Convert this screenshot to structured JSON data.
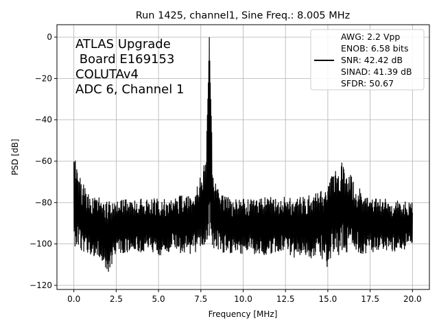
{
  "chart_data": {
    "type": "line",
    "title": "Run 1425, channel1, Sine Freq.: 8.005 MHz",
    "xlabel": "Frequency [MHz]",
    "ylabel": "PSD [dB]",
    "xlim": [
      -1.0,
      21.0
    ],
    "ylim": [
      -122,
      6
    ],
    "xticks": [
      0.0,
      2.5,
      5.0,
      7.5,
      10.0,
      12.5,
      15.0,
      17.5,
      20.0
    ],
    "xtick_labels": [
      "0.0",
      "2.5",
      "5.0",
      "7.5",
      "10.0",
      "12.5",
      "15.0",
      "17.5",
      "20.0"
    ],
    "yticks": [
      0,
      -20,
      -40,
      -60,
      -80,
      -100,
      -120
    ],
    "ytick_labels": [
      "0",
      "−20",
      "−40",
      "−60",
      "−80",
      "−100",
      "−120"
    ],
    "grid": true,
    "legend_position": "top-right",
    "annotation_lines": [
      "ATLAS Upgrade",
      " Board E169153",
      "COLUTAv4",
      "ADC 6, Channel 1"
    ],
    "legend_lines": [
      "AWG: 2.2 Vpp",
      "ENOB: 6.58 bits",
      "SNR: 42.42 dB",
      "SINAD: 41.39 dB",
      "SFDR: 50.67"
    ],
    "line_color": "#000000",
    "series": [
      {
        "x": [
          0.0,
          0.05,
          0.1,
          0.2,
          0.3,
          0.5,
          0.8,
          1.0,
          1.5,
          2.0,
          2.5,
          3.0,
          3.5,
          4.0,
          4.5,
          5.0,
          5.5,
          6.0,
          6.5,
          7.0,
          7.4,
          7.6,
          7.8,
          7.95,
          8.0,
          8.05,
          8.2,
          8.4,
          8.6,
          9.0,
          9.5,
          10.0,
          10.5,
          11.0,
          11.5,
          12.0,
          12.5,
          13.0,
          13.5,
          14.0,
          14.5,
          15.0,
          15.3,
          15.6,
          15.8,
          16.0,
          16.1,
          16.3,
          16.6,
          17.0,
          17.5,
          18.0,
          18.5,
          19.0,
          19.5,
          20.0
        ],
        "y_upper": [
          -60,
          -57,
          -60,
          -63,
          -66,
          -70,
          -74,
          -76,
          -77,
          -78,
          -79,
          -78,
          -79,
          -78,
          -78,
          -77,
          -78,
          -77,
          -76,
          -76,
          -70,
          -62,
          -61,
          -20,
          0,
          -20,
          -62,
          -70,
          -76,
          -77,
          -78,
          -78,
          -77,
          -78,
          -77,
          -78,
          -77,
          -78,
          -77,
          -76,
          -74,
          -70,
          -66,
          -62,
          -58,
          -62,
          -64,
          -66,
          -70,
          -74,
          -77,
          -78,
          -78,
          -79,
          -79,
          -80
        ],
        "y_lower": [
          -100,
          -101,
          -102,
          -103,
          -104,
          -105,
          -106,
          -106,
          -107,
          -116,
          -104,
          -105,
          -105,
          -104,
          -104,
          -106,
          -104,
          -104,
          -105,
          -105,
          -103,
          -102,
          -102,
          -99,
          -96,
          -100,
          -103,
          -103,
          -104,
          -105,
          -104,
          -105,
          -104,
          -107,
          -105,
          -105,
          -104,
          -107,
          -106,
          -107,
          -106,
          -112,
          -105,
          -106,
          -104,
          -104,
          -106,
          -103,
          -104,
          -105,
          -104,
          -104,
          -104,
          -104,
          -103,
          -100
        ]
      }
    ]
  }
}
